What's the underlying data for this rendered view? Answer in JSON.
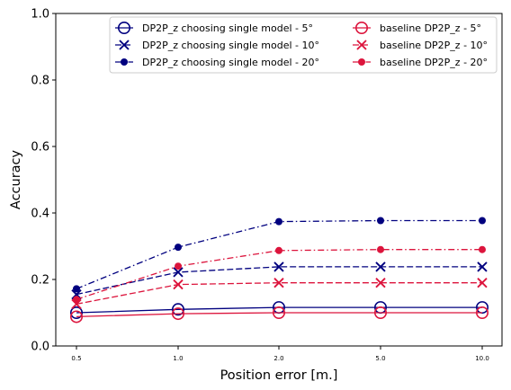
{
  "chart_data": {
    "type": "line",
    "xlabel": "Position error [m.]",
    "ylabel": "Accuracy",
    "categories": [
      "0.5",
      "1.0",
      "2.0",
      "5.0",
      "10.0"
    ],
    "ylim": [
      0.0,
      1.0
    ],
    "yticks": [
      "0.0",
      "0.2",
      "0.4",
      "0.6",
      "0.8",
      "1.0"
    ],
    "grid": false,
    "legend_position": "top-right",
    "series": [
      {
        "name": "DP2P_z choosing single model - 5°",
        "values": [
          0.1,
          0.11,
          0.116,
          0.116,
          0.116
        ],
        "color": "#00007f",
        "linestyle": "solid",
        "marker": "circle-open"
      },
      {
        "name": "DP2P_z choosing single model - 10°",
        "values": [
          0.155,
          0.222,
          0.238,
          0.238,
          0.238
        ],
        "color": "#00007f",
        "linestyle": "dashed",
        "marker": "x"
      },
      {
        "name": "DP2P_z choosing single model - 20°",
        "values": [
          0.172,
          0.297,
          0.374,
          0.377,
          0.377
        ],
        "color": "#00007f",
        "linestyle": "dashdot",
        "marker": "dot"
      },
      {
        "name": "baseline DP2P_z - 5°",
        "values": [
          0.088,
          0.097,
          0.1,
          0.1,
          0.1
        ],
        "color": "#dc143c",
        "linestyle": "solid",
        "marker": "circle-open"
      },
      {
        "name": "baseline DP2P_z - 10°",
        "values": [
          0.126,
          0.185,
          0.19,
          0.19,
          0.19
        ],
        "color": "#dc143c",
        "linestyle": "dashed",
        "marker": "x"
      },
      {
        "name": "baseline DP2P_z - 20°",
        "values": [
          0.14,
          0.24,
          0.287,
          0.29,
          0.29
        ],
        "color": "#dc143c",
        "linestyle": "dashdot",
        "marker": "dot"
      }
    ]
  }
}
